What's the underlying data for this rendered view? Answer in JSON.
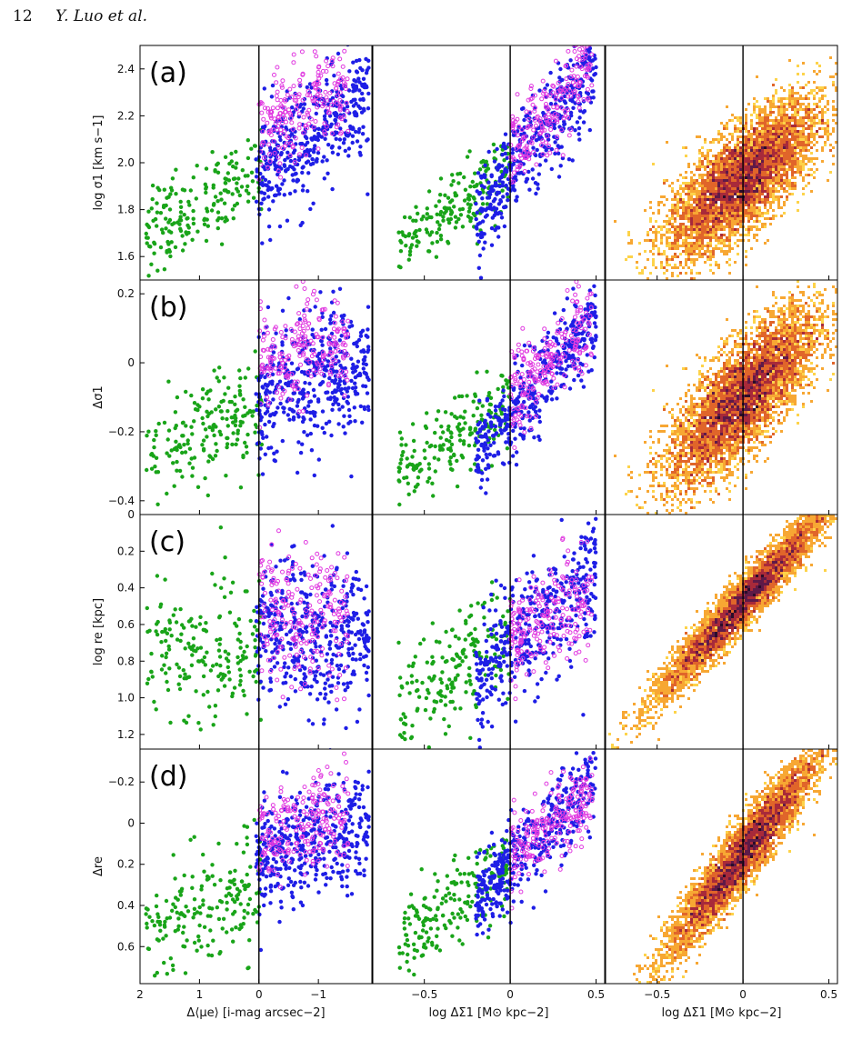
{
  "header": {
    "page_number": "12",
    "authors": "Y. Luo et al."
  },
  "colors": {
    "green": "#19a419",
    "blue": "#1e1ee6",
    "magenta": "#e03ae0",
    "heat": [
      "#fdd34a",
      "#f7a733",
      "#e0652a",
      "#a82a3a",
      "#5e1a48",
      "#2a0d2a"
    ]
  },
  "chart_data": [
    {
      "type": "scatter",
      "row": "a",
      "column": 1,
      "panel_label": "(a)",
      "ylabel": "log σ1 [km s−1]",
      "ylim": [
        1.5,
        2.5
      ],
      "yticks": [
        "1.6",
        "1.8",
        "2.0",
        "2.2",
        "2.4"
      ],
      "xlim": [
        2,
        -1.9
      ],
      "xticks": [
        "2",
        "1",
        "0",
        "−1"
      ],
      "vline": 0,
      "series": [
        {
          "color": "green",
          "marker": "filled",
          "x_range": [
            1.9,
            -0.05
          ],
          "slope": -0.12,
          "center": [
            0.95,
            1.83
          ],
          "scatter": 0.09,
          "count": 190
        },
        {
          "color": "blue",
          "marker": "filled",
          "x_range": [
            0.05,
            -1.85
          ],
          "slope": -0.18,
          "center": [
            -0.7,
            2.08
          ],
          "scatter": 0.12,
          "count": 430
        },
        {
          "color": "magenta",
          "marker": "open",
          "x_range": [
            0.0,
            -1.5
          ],
          "slope": -0.12,
          "center": [
            -0.7,
            2.22
          ],
          "scatter": 0.1,
          "count": 220
        }
      ]
    },
    {
      "type": "scatter",
      "row": "a",
      "column": 2,
      "ylim": [
        1.5,
        2.5
      ],
      "xlim": [
        -0.8,
        0.55
      ],
      "xticks": [
        "−0.5",
        "0",
        "0.5"
      ],
      "vline": 0,
      "series": [
        {
          "color": "green",
          "marker": "filled",
          "x_range": [
            -0.65,
            0.0
          ],
          "slope": 0.55,
          "center": [
            -0.25,
            1.85
          ],
          "scatter": 0.08,
          "count": 190
        },
        {
          "color": "blue",
          "marker": "filled",
          "x_range": [
            -0.2,
            0.5
          ],
          "slope": 0.9,
          "center": [
            0.15,
            2.08
          ],
          "scatter": 0.1,
          "count": 430
        },
        {
          "color": "magenta",
          "marker": "open",
          "x_range": [
            0.0,
            0.48
          ],
          "slope": 0.8,
          "center": [
            0.25,
            2.25
          ],
          "scatter": 0.09,
          "count": 220
        }
      ]
    },
    {
      "type": "heatmap",
      "row": "a",
      "column": 3,
      "ylim": [
        1.5,
        2.5
      ],
      "xlim": [
        -0.8,
        0.55
      ],
      "xticks": [
        "−0.5",
        "0",
        "0.5"
      ],
      "vline": 0,
      "distribution": {
        "center": [
          0.0,
          1.93
        ],
        "slope": 0.55,
        "spread_x": 0.22,
        "scatter": 0.11,
        "count": 9000
      }
    },
    {
      "type": "scatter",
      "row": "b",
      "column": 1,
      "panel_label": "(b)",
      "ylabel": "Δσ1",
      "ylim": [
        -0.44,
        0.24
      ],
      "yticks": [
        "−0.4",
        "−0.2",
        "0",
        "0.2"
      ],
      "xlim": [
        2,
        -1.9
      ],
      "xticks": [
        "2",
        "1",
        "0",
        "−1"
      ],
      "vline": 0,
      "series": [
        {
          "color": "green",
          "marker": "filled",
          "x_range": [
            1.9,
            -0.05
          ],
          "slope": -0.06,
          "center": [
            0.95,
            -0.2
          ],
          "scatter": 0.08,
          "count": 190
        },
        {
          "color": "blue",
          "marker": "filled",
          "x_range": [
            0.05,
            -1.85
          ],
          "slope": -0.05,
          "center": [
            -0.7,
            -0.06
          ],
          "scatter": 0.1,
          "count": 430
        },
        {
          "color": "magenta",
          "marker": "open",
          "x_range": [
            0.0,
            -1.5
          ],
          "slope": -0.05,
          "center": [
            -0.7,
            0.03
          ],
          "scatter": 0.08,
          "count": 220
        }
      ]
    },
    {
      "type": "scatter",
      "row": "b",
      "column": 2,
      "ylim": [
        -0.44,
        0.24
      ],
      "xlim": [
        -0.8,
        0.55
      ],
      "xticks": [
        "−0.5",
        "0",
        "0.5"
      ],
      "vline": 0,
      "series": [
        {
          "color": "green",
          "marker": "filled",
          "x_range": [
            -0.65,
            0.0
          ],
          "slope": 0.3,
          "center": [
            -0.25,
            -0.2
          ],
          "scatter": 0.06,
          "count": 190
        },
        {
          "color": "blue",
          "marker": "filled",
          "x_range": [
            -0.2,
            0.5
          ],
          "slope": 0.55,
          "center": [
            0.15,
            -0.07
          ],
          "scatter": 0.06,
          "count": 430
        },
        {
          "color": "magenta",
          "marker": "open",
          "x_range": [
            0.0,
            0.48
          ],
          "slope": 0.5,
          "center": [
            0.25,
            0.02
          ],
          "scatter": 0.06,
          "count": 220
        }
      ]
    },
    {
      "type": "heatmap",
      "row": "b",
      "column": 3,
      "ylim": [
        -0.44,
        0.24
      ],
      "xlim": [
        -0.8,
        0.55
      ],
      "xticks": [
        "−0.5",
        "0",
        "0.5"
      ],
      "vline": 0,
      "distribution": {
        "center": [
          0.0,
          -0.1
        ],
        "slope": 0.45,
        "spread_x": 0.22,
        "scatter": 0.08,
        "count": 9000
      }
    },
    {
      "type": "scatter",
      "row": "c",
      "column": 1,
      "panel_label": "(c)",
      "ylabel": "log re [kpc]",
      "ylim": [
        1.28,
        0.0
      ],
      "inverted_y": true,
      "yticks": [
        "0",
        "0.2",
        "0.4",
        "0.6",
        "0.8",
        "1.0",
        "1.2"
      ],
      "xlim": [
        2,
        -1.9
      ],
      "xticks": [
        "2",
        "1",
        "0",
        "−1"
      ],
      "vline": 0,
      "series": [
        {
          "color": "green",
          "marker": "filled",
          "x_range": [
            1.9,
            -0.05
          ],
          "slope": 0.0,
          "center": [
            0.95,
            0.75
          ],
          "scatter": 0.2,
          "count": 190
        },
        {
          "color": "blue",
          "marker": "filled",
          "x_range": [
            0.05,
            -1.85
          ],
          "slope": 0.0,
          "center": [
            -0.7,
            0.65
          ],
          "scatter": 0.2,
          "count": 430
        },
        {
          "color": "magenta",
          "marker": "open",
          "x_range": [
            0.0,
            -1.5
          ],
          "slope": 0.0,
          "center": [
            -0.7,
            0.55
          ],
          "scatter": 0.17,
          "count": 220
        }
      ]
    },
    {
      "type": "scatter",
      "row": "c",
      "column": 2,
      "ylim": [
        1.28,
        0.0
      ],
      "inverted_y": true,
      "xlim": [
        -0.8,
        0.55
      ],
      "xticks": [
        "−0.5",
        "0",
        "0.5"
      ],
      "vline": 0,
      "series": [
        {
          "color": "green",
          "marker": "filled",
          "x_range": [
            -0.65,
            0.0
          ],
          "slope": -0.6,
          "center": [
            -0.25,
            0.8
          ],
          "scatter": 0.15,
          "count": 190
        },
        {
          "color": "blue",
          "marker": "filled",
          "x_range": [
            -0.2,
            0.5
          ],
          "slope": -0.7,
          "center": [
            0.15,
            0.6
          ],
          "scatter": 0.16,
          "count": 430
        },
        {
          "color": "magenta",
          "marker": "open",
          "x_range": [
            0.0,
            0.48
          ],
          "slope": -0.5,
          "center": [
            0.25,
            0.55
          ],
          "scatter": 0.14,
          "count": 220
        }
      ]
    },
    {
      "type": "heatmap",
      "row": "c",
      "column": 3,
      "ylim": [
        1.28,
        0.0
      ],
      "inverted_y": true,
      "xlim": [
        -0.8,
        0.55
      ],
      "xticks": [
        "−0.5",
        "0",
        "0.5"
      ],
      "vline": 0,
      "distribution": {
        "center": [
          0.0,
          0.48
        ],
        "slope": -1.0,
        "spread_x": 0.25,
        "scatter": 0.07,
        "count": 9000
      }
    },
    {
      "type": "scatter",
      "row": "d",
      "column": 1,
      "panel_label": "(d)",
      "ylabel": "Δre",
      "ylim": [
        0.78,
        -0.36
      ],
      "inverted_y": true,
      "yticks": [
        "−0.2",
        "0",
        "0.2",
        "0.4",
        "0.6"
      ],
      "xlim": [
        2,
        -1.9
      ],
      "xticks": [
        "2",
        "1",
        "0",
        "−1"
      ],
      "vline": 0,
      "series": [
        {
          "color": "green",
          "marker": "filled",
          "x_range": [
            1.9,
            -0.05
          ],
          "slope": 0.16,
          "center": [
            0.95,
            0.42
          ],
          "scatter": 0.14,
          "count": 190
        },
        {
          "color": "blue",
          "marker": "filled",
          "x_range": [
            0.05,
            -1.85
          ],
          "slope": 0.1,
          "center": [
            -0.7,
            0.12
          ],
          "scatter": 0.13,
          "count": 430
        },
        {
          "color": "magenta",
          "marker": "open",
          "x_range": [
            0.0,
            -1.5
          ],
          "slope": 0.1,
          "center": [
            -0.7,
            0.02
          ],
          "scatter": 0.11,
          "count": 220
        }
      ]
    },
    {
      "type": "scatter",
      "row": "d",
      "column": 2,
      "xlabel": "log ΔΣ1 [M⊙ kpc−2]",
      "ylim": [
        0.78,
        -0.36
      ],
      "inverted_y": true,
      "xlim": [
        -0.8,
        0.55
      ],
      "xticks": [
        "−0.5",
        "0",
        "0.5"
      ],
      "vline": 0,
      "series": [
        {
          "color": "green",
          "marker": "filled",
          "x_range": [
            -0.65,
            0.0
          ],
          "slope": -0.6,
          "center": [
            -0.25,
            0.35
          ],
          "scatter": 0.1,
          "count": 190
        },
        {
          "color": "blue",
          "marker": "filled",
          "x_range": [
            -0.2,
            0.5
          ],
          "slope": -0.9,
          "center": [
            0.15,
            0.08
          ],
          "scatter": 0.1,
          "count": 430
        },
        {
          "color": "magenta",
          "marker": "open",
          "x_range": [
            0.0,
            0.48
          ],
          "slope": -0.7,
          "center": [
            0.25,
            0.0
          ],
          "scatter": 0.09,
          "count": 220
        }
      ]
    },
    {
      "type": "heatmap",
      "row": "d",
      "column": 3,
      "xlabel": "log ΔΣ1 [M⊙ kpc−2]",
      "ylim": [
        0.78,
        -0.36
      ],
      "inverted_y": true,
      "xlim": [
        -0.8,
        0.55
      ],
      "xticks": [
        "−0.5",
        "0",
        "0.5"
      ],
      "vline": 0,
      "distribution": {
        "center": [
          0.0,
          0.15
        ],
        "slope": -1.05,
        "spread_x": 0.22,
        "scatter": 0.08,
        "count": 9000
      }
    }
  ],
  "col1_xlabel": "Δ⟨μe⟩ [i-mag arcsec−2]"
}
